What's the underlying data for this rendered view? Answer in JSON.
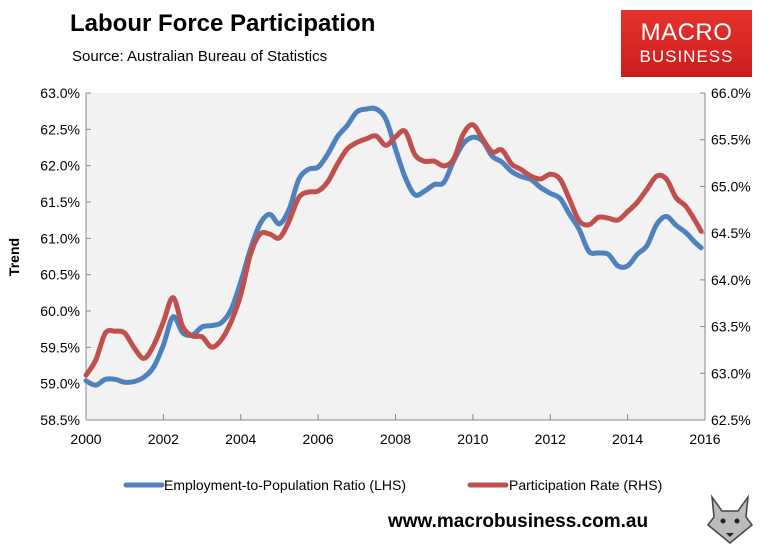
{
  "header": {
    "title": "Labour Force Participation",
    "source": "Source: Australian Bureau of Statistics"
  },
  "logo": {
    "line1": "MACRO",
    "line2": "BUSINESS",
    "color": "#d9272a"
  },
  "footer": {
    "url": "www.macrobusiness.com.au"
  },
  "chart_data": {
    "type": "line",
    "title": "Labour Force Participation",
    "ylabel": "Trend",
    "xlim": [
      2000,
      2016
    ],
    "xticks": [
      "2000",
      "2002",
      "2004",
      "2006",
      "2008",
      "2010",
      "2012",
      "2014",
      "2016"
    ],
    "ylim_left": [
      58.5,
      63.0
    ],
    "yticks_left": [
      "58.5%",
      "59.0%",
      "59.5%",
      "60.0%",
      "60.5%",
      "61.0%",
      "61.5%",
      "62.0%",
      "62.5%",
      "63.0%"
    ],
    "ylim_right": [
      62.5,
      66.0
    ],
    "yticks_right": [
      "62.5%",
      "63.0%",
      "63.5%",
      "64.0%",
      "64.5%",
      "65.0%",
      "65.5%",
      "66.0%"
    ],
    "grid": false,
    "legend_placement": "bottom",
    "x": [
      2000,
      2000.25,
      2000.5,
      2000.75,
      2001,
      2001.25,
      2001.5,
      2001.75,
      2002,
      2002.25,
      2002.5,
      2002.75,
      2003,
      2003.25,
      2003.5,
      2003.75,
      2004,
      2004.25,
      2004.5,
      2004.75,
      2005,
      2005.25,
      2005.5,
      2005.75,
      2006,
      2006.25,
      2006.5,
      2006.75,
      2007,
      2007.25,
      2007.5,
      2007.75,
      2008,
      2008.25,
      2008.5,
      2008.75,
      2009,
      2009.25,
      2009.5,
      2009.75,
      2010,
      2010.25,
      2010.5,
      2010.75,
      2011,
      2011.25,
      2011.5,
      2011.75,
      2012,
      2012.25,
      2012.5,
      2012.75,
      2013,
      2013.25,
      2013.5,
      2013.75,
      2014,
      2014.25,
      2014.5,
      2014.75,
      2015,
      2015.25,
      2015.5,
      2015.75,
      2015.9
    ],
    "series": [
      {
        "name": "Employment-to-Population Ratio (LHS)",
        "axis": "left",
        "color": "#4f81bd",
        "values": [
          59.04,
          58.98,
          59.06,
          59.06,
          59.02,
          59.03,
          59.09,
          59.23,
          59.53,
          59.92,
          59.7,
          59.67,
          59.78,
          59.8,
          59.84,
          60.02,
          60.4,
          60.85,
          61.2,
          61.33,
          61.2,
          61.4,
          61.81,
          61.95,
          61.98,
          62.16,
          62.4,
          62.55,
          62.74,
          62.78,
          62.78,
          62.64,
          62.23,
          61.84,
          61.6,
          61.65,
          61.74,
          61.77,
          62.06,
          62.3,
          62.39,
          62.34,
          62.13,
          62.05,
          61.92,
          61.85,
          61.81,
          61.7,
          61.62,
          61.55,
          61.33,
          61.12,
          60.82,
          60.8,
          60.78,
          60.62,
          60.62,
          60.78,
          60.9,
          61.19,
          61.3,
          61.18,
          61.08,
          60.94,
          60.87
        ]
      },
      {
        "name": "Participation Rate (RHS)",
        "axis": "right",
        "color": "#c0504d",
        "values": [
          62.98,
          63.14,
          63.43,
          63.45,
          63.43,
          63.27,
          63.16,
          63.3,
          63.55,
          63.81,
          63.5,
          63.4,
          63.39,
          63.28,
          63.36,
          63.55,
          63.84,
          64.27,
          64.49,
          64.49,
          64.45,
          64.63,
          64.88,
          64.94,
          64.95,
          65.05,
          65.24,
          65.4,
          65.47,
          65.51,
          65.54,
          65.44,
          65.53,
          65.59,
          65.34,
          65.27,
          65.27,
          65.22,
          65.29,
          65.56,
          65.66,
          65.51,
          65.37,
          65.39,
          65.24,
          65.18,
          65.11,
          65.08,
          65.13,
          65.08,
          64.86,
          64.63,
          64.59,
          64.67,
          64.66,
          64.64,
          64.73,
          64.83,
          64.97,
          65.11,
          65.08,
          64.88,
          64.79,
          64.63,
          64.52
        ]
      }
    ]
  }
}
